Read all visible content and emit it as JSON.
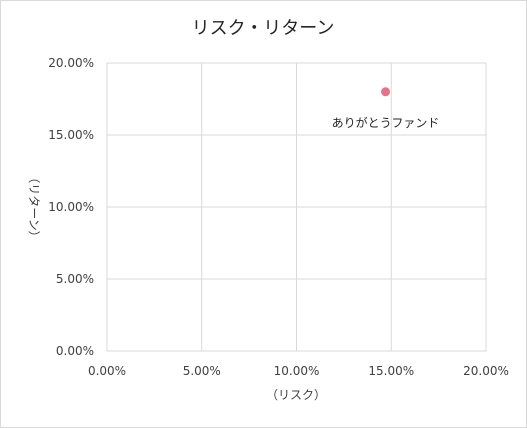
{
  "chart_data": {
    "type": "scatter",
    "title": "リスク・リターン",
    "xlabel": "（リスク）",
    "ylabel": "（リターン）",
    "xlim": [
      0,
      20
    ],
    "ylim": [
      0,
      20
    ],
    "xticks": [
      0,
      5,
      10,
      15,
      20
    ],
    "yticks": [
      0,
      5,
      10,
      15,
      20
    ],
    "x_tick_labels": [
      "0.00%",
      "5.00%",
      "10.00%",
      "15.00%",
      "20.00%"
    ],
    "y_tick_labels": [
      "0.00%",
      "5.00%",
      "10.00%",
      "15.00%",
      "20.00%"
    ],
    "grid": true,
    "legend": "none",
    "points": [
      {
        "x": 14.7,
        "y": 18.0,
        "label": "ありがとうファンド",
        "color": "#e8708a"
      }
    ]
  }
}
